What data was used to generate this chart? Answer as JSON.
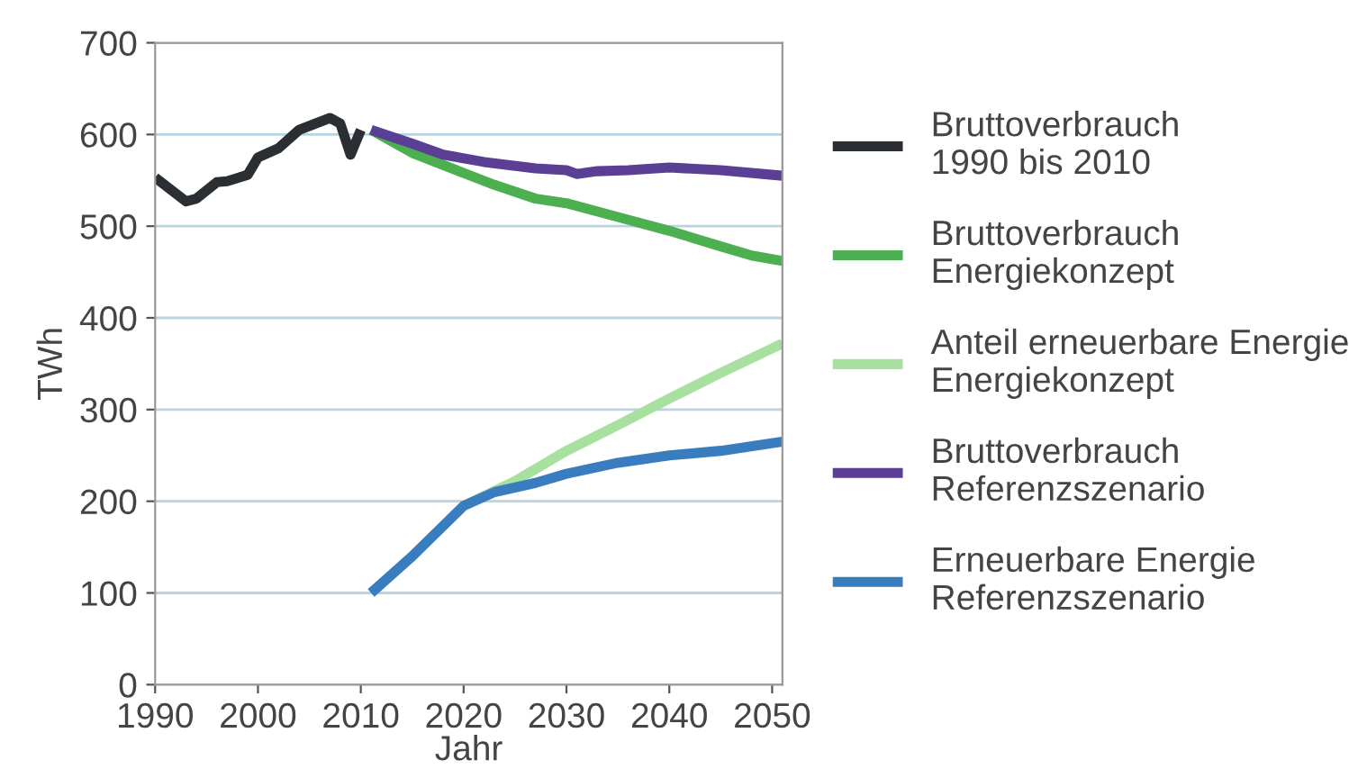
{
  "chart_data": {
    "type": "line",
    "xlabel": "Jahr",
    "ylabel": "TWh",
    "xlim": [
      1990,
      2051
    ],
    "ylim": [
      0,
      700
    ],
    "xticks": [
      1990,
      2000,
      2010,
      2020,
      2030,
      2040,
      2050
    ],
    "yticks": [
      0,
      100,
      200,
      300,
      400,
      500,
      600,
      700
    ],
    "grid": "y",
    "legend": "right",
    "marker": "none",
    "line_style": "solid",
    "series": [
      {
        "name": "Bruttoverbrauch\n1990 bis 2010",
        "color": "#2b2f33",
        "x": [
          1990,
          1993,
          1994,
          1996,
          1997,
          1999,
          2000,
          2002,
          2004,
          2007,
          2008,
          2009,
          2010
        ],
        "values": [
          553,
          527,
          530,
          548,
          549,
          556,
          575,
          585,
          605,
          618,
          612,
          578,
          605
        ]
      },
      {
        "name": "Bruttoverbrauch\nEnergiekonzept",
        "color": "#4cb050",
        "x": [
          2011,
          2015,
          2020,
          2023,
          2027,
          2030,
          2035,
          2040,
          2045,
          2048,
          2051
        ],
        "values": [
          605,
          580,
          558,
          545,
          530,
          525,
          510,
          495,
          478,
          468,
          462
        ]
      },
      {
        "name": "Anteil erneuerbare Energie\nEnergiekonzept",
        "color": "#a8e0a0",
        "x": [
          2020,
          2025,
          2030,
          2035,
          2040,
          2045,
          2051
        ],
        "values": [
          195,
          222,
          255,
          283,
          312,
          340,
          372
        ]
      },
      {
        "name": "Bruttoverbrauch\nReferenzszenario",
        "color": "#5b3f95",
        "x": [
          2011,
          2015,
          2018,
          2022,
          2027,
          2030,
          2031,
          2033,
          2036,
          2040,
          2045,
          2051
        ],
        "values": [
          605,
          590,
          578,
          570,
          563,
          561,
          557,
          560,
          561,
          564,
          561,
          555
        ]
      },
      {
        "name": "Erneuerbare Energie\nReferenzszenario",
        "color": "#3a7dbf",
        "x": [
          2011,
          2015,
          2020,
          2023,
          2027,
          2030,
          2035,
          2040,
          2045,
          2051
        ],
        "values": [
          100,
          140,
          195,
          210,
          220,
          230,
          242,
          250,
          255,
          265
        ]
      }
    ]
  }
}
